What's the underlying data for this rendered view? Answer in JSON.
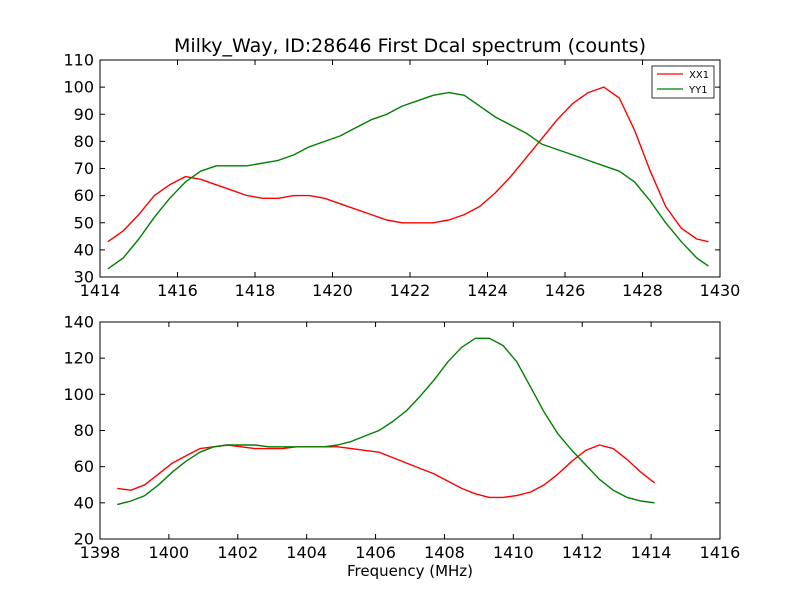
{
  "chart_data": [
    {
      "type": "line",
      "title": "Milky_Way, ID:28646 First Dcal spectrum (counts)",
      "xlabel": "",
      "ylabel": "",
      "xlim": [
        1414,
        1430
      ],
      "ylim": [
        30,
        110
      ],
      "xticks": [
        1414,
        1416,
        1418,
        1420,
        1422,
        1424,
        1426,
        1428,
        1430
      ],
      "yticks": [
        30,
        40,
        50,
        60,
        70,
        80,
        90,
        100,
        110
      ],
      "grid": false,
      "legend": "top-right",
      "series": [
        {
          "name": "XX1",
          "color": "#ff0000",
          "x": [
            1414.2,
            1414.6,
            1415.0,
            1415.4,
            1415.8,
            1416.2,
            1416.6,
            1417.0,
            1417.4,
            1417.8,
            1418.2,
            1418.6,
            1419.0,
            1419.4,
            1419.8,
            1420.2,
            1420.6,
            1421.0,
            1421.4,
            1421.8,
            1422.2,
            1422.6,
            1423.0,
            1423.4,
            1423.8,
            1424.2,
            1424.6,
            1425.0,
            1425.4,
            1425.8,
            1426.2,
            1426.6,
            1427.0,
            1427.4,
            1427.8,
            1428.2,
            1428.6,
            1429.0,
            1429.4,
            1429.7
          ],
          "values": [
            43,
            47,
            53,
            60,
            64,
            67,
            66,
            64,
            62,
            60,
            59,
            59,
            60,
            60,
            59,
            57,
            55,
            53,
            51,
            50,
            50,
            50,
            51,
            53,
            56,
            61,
            67,
            74,
            81,
            88,
            94,
            98,
            100,
            96,
            84,
            69,
            56,
            48,
            44,
            43
          ]
        },
        {
          "name": "YY1",
          "color": "#008000",
          "x": [
            1414.2,
            1414.6,
            1415.0,
            1415.4,
            1415.8,
            1416.2,
            1416.6,
            1417.0,
            1417.4,
            1417.8,
            1418.2,
            1418.6,
            1419.0,
            1419.4,
            1419.8,
            1420.2,
            1420.6,
            1421.0,
            1421.4,
            1421.8,
            1422.2,
            1422.6,
            1423.0,
            1423.4,
            1423.8,
            1424.2,
            1424.6,
            1425.0,
            1425.4,
            1425.8,
            1426.2,
            1426.6,
            1427.0,
            1427.4,
            1427.8,
            1428.2,
            1428.6,
            1429.0,
            1429.4,
            1429.7
          ],
          "values": [
            33,
            37,
            44,
            52,
            59,
            65,
            69,
            71,
            71,
            71,
            72,
            73,
            75,
            78,
            80,
            82,
            85,
            88,
            90,
            93,
            95,
            97,
            98,
            97,
            93,
            89,
            86,
            83,
            79,
            77,
            75,
            73,
            71,
            69,
            65,
            58,
            50,
            43,
            37,
            34
          ]
        }
      ]
    },
    {
      "type": "line",
      "title": "",
      "xlabel": "Frequency (MHz)",
      "ylabel": "",
      "xlim": [
        1398,
        1416
      ],
      "ylim": [
        20,
        140
      ],
      "xticks": [
        1398,
        1400,
        1402,
        1404,
        1406,
        1408,
        1410,
        1412,
        1414,
        1416
      ],
      "yticks": [
        20,
        40,
        60,
        80,
        100,
        120,
        140
      ],
      "grid": false,
      "legend": "none",
      "series": [
        {
          "name": "XX1",
          "color": "#ff0000",
          "x": [
            1398.5,
            1398.9,
            1399.3,
            1399.7,
            1400.1,
            1400.5,
            1400.9,
            1401.3,
            1401.7,
            1402.1,
            1402.5,
            1402.9,
            1403.3,
            1403.7,
            1404.1,
            1404.5,
            1404.9,
            1405.3,
            1405.7,
            1406.1,
            1406.5,
            1406.9,
            1407.3,
            1407.7,
            1408.1,
            1408.5,
            1408.9,
            1409.3,
            1409.7,
            1410.1,
            1410.5,
            1410.9,
            1411.3,
            1411.7,
            1412.1,
            1412.5,
            1412.9,
            1413.3,
            1413.7,
            1414.1
          ],
          "values": [
            48,
            47,
            50,
            56,
            62,
            66,
            70,
            71,
            72,
            71,
            70,
            70,
            70,
            71,
            71,
            71,
            71,
            70,
            69,
            68,
            65,
            62,
            59,
            56,
            52,
            48,
            45,
            43,
            43,
            44,
            46,
            50,
            56,
            63,
            69,
            72,
            70,
            64,
            57,
            51
          ]
        },
        {
          "name": "YY1",
          "color": "#008000",
          "x": [
            1398.5,
            1398.9,
            1399.3,
            1399.7,
            1400.1,
            1400.5,
            1400.9,
            1401.3,
            1401.7,
            1402.1,
            1402.5,
            1402.9,
            1403.3,
            1403.7,
            1404.1,
            1404.5,
            1404.9,
            1405.3,
            1405.7,
            1406.1,
            1406.5,
            1406.9,
            1407.3,
            1407.7,
            1408.1,
            1408.5,
            1408.9,
            1409.3,
            1409.7,
            1410.1,
            1410.5,
            1410.9,
            1411.3,
            1411.7,
            1412.1,
            1412.5,
            1412.9,
            1413.3,
            1413.7,
            1414.1
          ],
          "values": [
            39,
            41,
            44,
            50,
            57,
            63,
            68,
            71,
            72,
            72,
            72,
            71,
            71,
            71,
            71,
            71,
            72,
            74,
            77,
            80,
            85,
            91,
            99,
            108,
            118,
            126,
            131,
            131,
            127,
            118,
            104,
            90,
            78,
            69,
            61,
            53,
            47,
            43,
            41,
            40
          ]
        }
      ]
    }
  ]
}
